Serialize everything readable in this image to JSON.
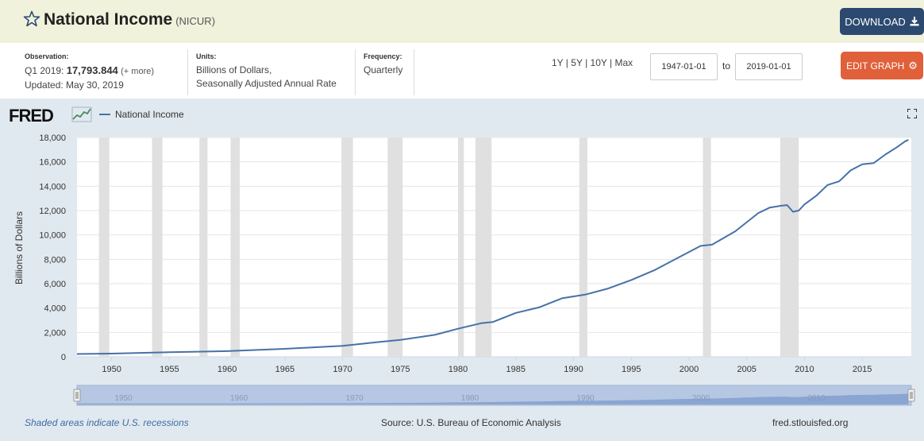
{
  "header": {
    "title": "National Income",
    "series_id": "(NICUR)",
    "download_label": "DOWNLOAD"
  },
  "meta": {
    "observation_label": "Observation:",
    "observation_period": "Q1 2019:",
    "observation_value": "17,793.844",
    "observation_more": "(+ more)",
    "updated": "Updated: May 30, 2019",
    "units_label": "Units:",
    "units_line1": "Billions of Dollars,",
    "units_line2": "Seasonally Adjusted Annual Rate",
    "frequency_label": "Frequency:",
    "frequency_value": "Quarterly"
  },
  "range_controls": {
    "r1y": "1Y",
    "r5y": "5Y",
    "r10y": "10Y",
    "rmax": "Max",
    "sep": " | ",
    "start_date": "1947-01-01",
    "to_label": "to",
    "end_date": "2019-01-01",
    "edit_label": "EDIT GRAPH"
  },
  "graph": {
    "logo": "FRED",
    "legend_label": "National Income",
    "recession_note": "Shaded areas indicate U.S. recessions",
    "source_note": "Source: U.S. Bureau of Economic Analysis",
    "site": "fred.stlouisfed.org",
    "line_color": "#4572a7",
    "recession_color": "#e0e0e0",
    "navigator_ticks": [
      "1950",
      "1960",
      "1970",
      "1980",
      "1990",
      "2000",
      "2010"
    ]
  },
  "chart_data": {
    "type": "line",
    "title": "",
    "xlabel": "",
    "ylabel": "Billions of Dollars",
    "xlim": [
      1947.0,
      2019.25
    ],
    "ylim": [
      0,
      18000
    ],
    "x_ticks": [
      1950,
      1955,
      1960,
      1965,
      1970,
      1975,
      1980,
      1985,
      1990,
      1995,
      2000,
      2005,
      2010,
      2015
    ],
    "y_ticks": [
      0,
      2000,
      4000,
      6000,
      8000,
      10000,
      12000,
      14000,
      16000,
      18000
    ],
    "grid": true,
    "legend": "top-left",
    "recessions": [
      [
        1948.9,
        1949.8
      ],
      [
        1953.5,
        1954.4
      ],
      [
        1957.6,
        1958.3
      ],
      [
        1960.3,
        1961.1
      ],
      [
        1969.9,
        1970.9
      ],
      [
        1973.9,
        1975.2
      ],
      [
        1980.0,
        1980.5
      ],
      [
        1981.5,
        1982.9
      ],
      [
        1990.5,
        1991.2
      ],
      [
        2001.2,
        2001.9
      ],
      [
        2007.9,
        2009.5
      ]
    ],
    "series": [
      {
        "name": "National Income",
        "x": [
          1947.0,
          1950.0,
          1955.0,
          1960.0,
          1965.0,
          1970.0,
          1973.0,
          1975.0,
          1978.0,
          1980.0,
          1982.0,
          1983.0,
          1985.0,
          1987.0,
          1989.0,
          1991.0,
          1993.0,
          1995.0,
          1997.0,
          1999.0,
          2000.0,
          2001.0,
          2002.0,
          2004.0,
          2006.0,
          2007.0,
          2008.0,
          2008.5,
          2009.0,
          2009.5,
          2010.0,
          2011.0,
          2012.0,
          2013.0,
          2014.0,
          2015.0,
          2016.0,
          2017.0,
          2018.0,
          2018.75,
          2019.0
        ],
        "values": [
          230,
          260,
          380,
          460,
          650,
          900,
          1200,
          1380,
          1800,
          2300,
          2750,
          2850,
          3600,
          4050,
          4800,
          5100,
          5600,
          6300,
          7100,
          8100,
          8600,
          9100,
          9200,
          10300,
          11800,
          12250,
          12400,
          12450,
          11900,
          12000,
          12500,
          13200,
          14100,
          14400,
          15300,
          15800,
          15900,
          16600,
          17200,
          17700,
          17800
        ]
      }
    ]
  }
}
